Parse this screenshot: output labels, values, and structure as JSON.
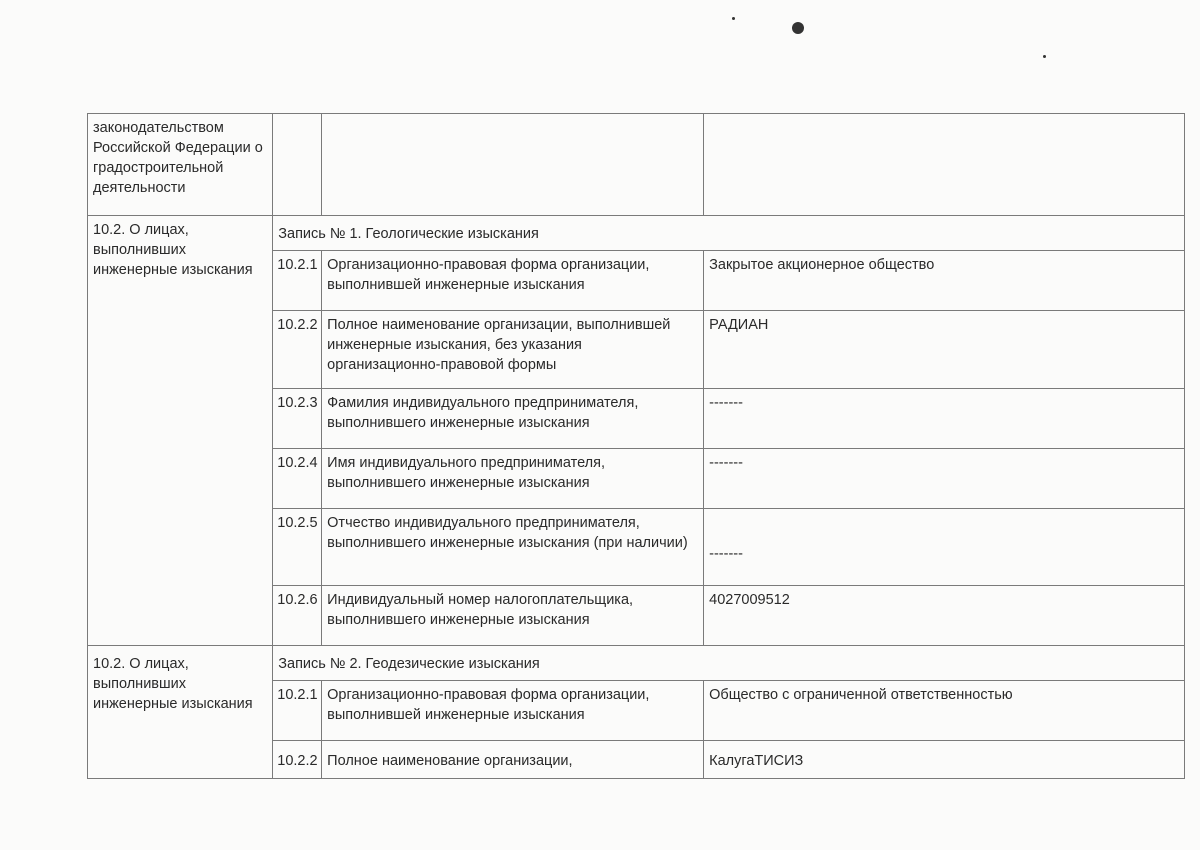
{
  "continuation_row": {
    "label": "законодательством Российской Федерации о градостроительной деятельности"
  },
  "records": [
    {
      "section": "10.2. О лицах, выполнивших инженерные изыскания",
      "title": "Запись № 1. Геологические изыскания",
      "items": [
        {
          "num": "10.2.1",
          "field": "Организационно-правовая форма организации, выполнившей инженерные изыскания",
          "value": "Закрытое акционерное общество"
        },
        {
          "num": "10.2.2",
          "field": "Полное наименование организации, выполнившей инженерные изыскания, без указания организационно-правовой формы",
          "value": "РАДИАН"
        },
        {
          "num": "10.2.3",
          "field": "Фамилия индивидуального предпринимателя, выполнившего инженерные изыскания",
          "value": "-------"
        },
        {
          "num": "10.2.4",
          "field": "Имя индивидуального предпринимателя, выполнившего инженерные изыскания",
          "value": "-------"
        },
        {
          "num": "10.2.5",
          "field": "Отчество индивидуального предпринимателя, выполнившего инженерные изыскания (при наличии)",
          "value": "-------"
        },
        {
          "num": "10.2.6",
          "field": "Индивидуальный номер налогоплательщика, выполнившего инженерные изыскания",
          "value": "4027009512"
        }
      ]
    },
    {
      "section": "10.2. О лицах, выполнивших инженерные изыскания",
      "title": "Запись № 2. Геодезические изыскания",
      "items": [
        {
          "num": "10.2.1",
          "field": "Организационно-правовая форма организации, выполнившей инженерные изыскания",
          "value": "Общество с ограниченной ответственностью"
        },
        {
          "num": "10.2.2",
          "field": "Полное наименование организации,",
          "value": "КалугаТИСИЗ"
        }
      ]
    }
  ]
}
